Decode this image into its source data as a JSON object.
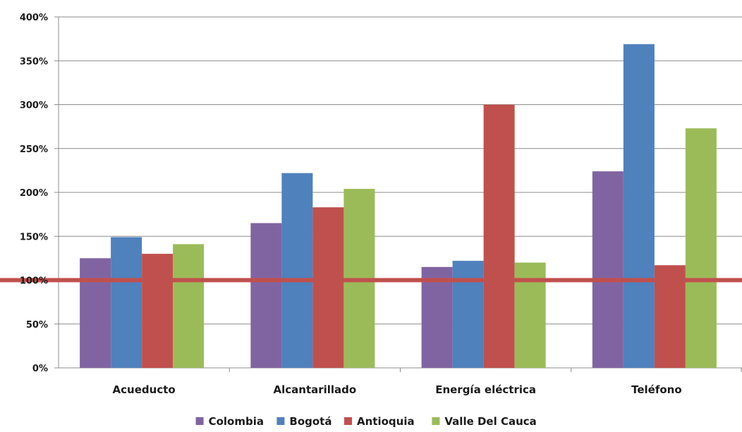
{
  "chart_data": {
    "type": "bar",
    "title": "",
    "xlabel": "",
    "ylabel": "",
    "categories": [
      "Acueducto",
      "Alcantarillado",
      "Energía eléctrica",
      "Teléfono"
    ],
    "series": [
      {
        "name": "Colombia",
        "color": "#8064a2",
        "values": [
          125,
          165,
          115,
          224
        ]
      },
      {
        "name": "Bogotá",
        "color": "#4f81bd",
        "values": [
          149,
          222,
          122,
          369
        ]
      },
      {
        "name": "Antioquia",
        "color": "#c0504d",
        "values": [
          130,
          183,
          300,
          117
        ]
      },
      {
        "name": "Valle Del Cauca",
        "color": "#9bbb59",
        "values": [
          141,
          204,
          120,
          273
        ]
      }
    ],
    "ylim": [
      0,
      400
    ],
    "y_ticks": [
      0,
      50,
      100,
      150,
      200,
      250,
      300,
      350,
      400
    ],
    "y_tick_labels": [
      "0%",
      "50%",
      "100%",
      "150%",
      "200%",
      "250%",
      "300%",
      "350%",
      "400%"
    ],
    "reference_line": {
      "value": 100,
      "color": "#c0504d"
    },
    "grid": true,
    "legend_position": "bottom"
  }
}
